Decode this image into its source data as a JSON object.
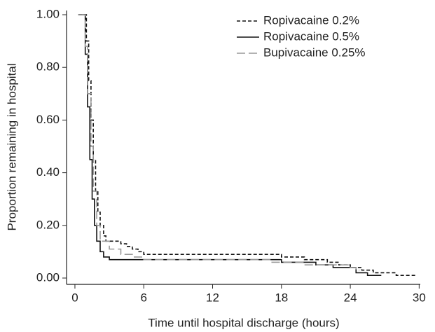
{
  "chart_data": {
    "type": "step",
    "xlabel": "Time until hospital discharge (hours)",
    "ylabel": "Proportion remaining in hospital",
    "xlim": [
      -0.73,
      30.1
    ],
    "ylim": [
      -0.024,
      1.016
    ],
    "xticks": [
      0,
      6,
      12,
      18,
      24,
      30
    ],
    "yticks": [
      {
        "value": 0,
        "label": "0.00"
      },
      {
        "value": 0.2,
        "label": "0.20"
      },
      {
        "value": 0.4,
        "label": "0.40"
      },
      {
        "value": 0.6,
        "label": "0.60"
      },
      {
        "value": 0.8,
        "label": "0.80"
      },
      {
        "value": 1,
        "label": "1.00"
      }
    ],
    "legend": "upper right",
    "series": [
      {
        "name": "Ropivacaine 0.2%",
        "color": "#111111",
        "dash": "dashed",
        "x": [
          0.3,
          0.8,
          1.0,
          1.2,
          1.4,
          1.6,
          1.8,
          2.0,
          2.2,
          2.5,
          2.7,
          4.0,
          4.5,
          5.0,
          5.5,
          6.0,
          18.0,
          20.0,
          22.0,
          23.0,
          24.0,
          25.0,
          26.0,
          28.0,
          29.7
        ],
        "values": [
          1.0,
          1.0,
          0.9,
          0.75,
          0.6,
          0.45,
          0.33,
          0.25,
          0.2,
          0.16,
          0.14,
          0.13,
          0.12,
          0.11,
          0.1,
          0.09,
          0.08,
          0.07,
          0.06,
          0.05,
          0.04,
          0.03,
          0.02,
          0.01,
          0.01
        ]
      },
      {
        "name": "Ropivacaine 0.5%",
        "color": "#111111",
        "dash": "solid",
        "x": [
          0.3,
          0.7,
          0.9,
          1.1,
          1.3,
          1.5,
          1.7,
          1.9,
          2.2,
          2.5,
          3.0,
          18.0,
          21.0,
          22.5,
          24.5,
          25.5,
          26.7
        ],
        "values": [
          1.0,
          1.0,
          0.85,
          0.65,
          0.45,
          0.3,
          0.2,
          0.14,
          0.1,
          0.08,
          0.07,
          0.06,
          0.05,
          0.04,
          0.02,
          0.01,
          0.01
        ]
      },
      {
        "name": "Bupivacaine 0.25%",
        "color": "#999999",
        "dash": "longdash",
        "x": [
          0.3,
          0.7,
          0.9,
          1.1,
          1.4,
          1.6,
          1.9,
          2.2,
          3.0,
          4.0,
          5.0,
          6.0,
          17.0,
          20.0,
          24.0,
          24.5,
          24.8
        ],
        "values": [
          1.0,
          1.0,
          0.88,
          0.7,
          0.5,
          0.33,
          0.2,
          0.14,
          0.11,
          0.09,
          0.08,
          0.07,
          0.06,
          0.05,
          0.04,
          0.03,
          0.03
        ]
      }
    ]
  }
}
